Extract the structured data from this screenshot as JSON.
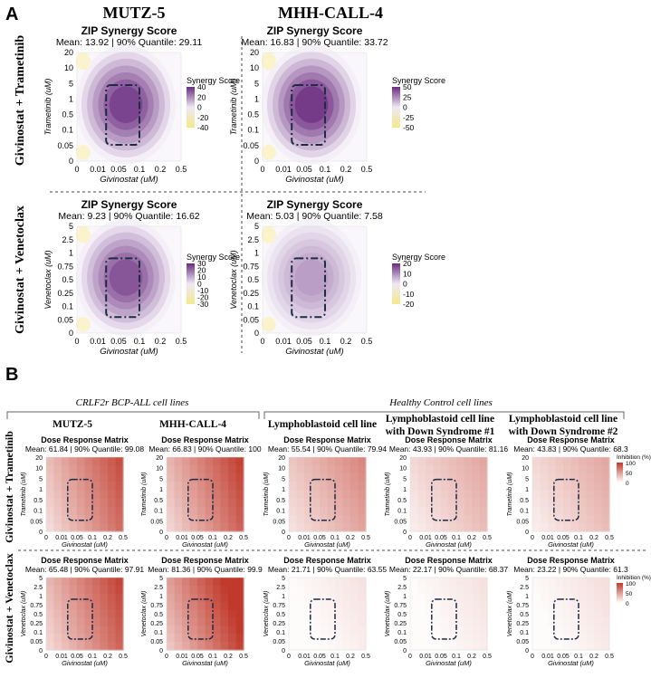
{
  "panel_letters": {
    "a": "A",
    "b": "B"
  },
  "section_a": {
    "column_headers": [
      "MUTZ-5",
      "MHH-CALL-4"
    ],
    "row_labels": [
      "Givinostat + Trametinib",
      "Givinostat + Venetoclax"
    ]
  },
  "section_b": {
    "group_headers": [
      "CRLF2r BCP-ALL cell lines",
      "Healthy Control cell lines"
    ],
    "column_headers": [
      [
        "MUTZ-5"
      ],
      [
        "MHH-CALL-4"
      ],
      [
        "Lymphoblastoid cell line"
      ],
      [
        "Lymphoblastoid cell line",
        "with Down Syndrome #1"
      ],
      [
        "Lymphoblastoid cell line",
        "with Down Syndrome #2"
      ]
    ],
    "row_labels": [
      "Givinostat + Trametinib",
      "Givinostat + Venetoclax"
    ]
  },
  "chart_data": [
    {
      "id": "a11",
      "type": "heatmap",
      "kind": "zip",
      "title": "ZIP Synergy Score",
      "subtitle": "Mean: 13.92 | 90% Quantile: 29.11",
      "xlabel": "Givinostat (uM)",
      "ylabel": "Trametinib (uM)",
      "xticks": [
        "0",
        "0.01",
        "0.05",
        "0.1",
        "0.2",
        "0.5"
      ],
      "yticks": [
        "0",
        "0.05",
        "0.1",
        "0.5",
        "1",
        "5",
        "10",
        "20"
      ],
      "legend_title": "Synergy Score",
      "legend_ticks": [
        "40",
        "20",
        "0",
        "-20",
        "-40"
      ],
      "intensity": 0.95
    },
    {
      "id": "a12",
      "type": "heatmap",
      "kind": "zip",
      "title": "ZIP Synergy Score",
      "subtitle": "Mean: 16.83 | 90% Quantile: 33.72",
      "xlabel": "Givinostat (uM)",
      "ylabel": "Trametinib (uM)",
      "xticks": [
        "0",
        "0.01",
        "0.05",
        "0.1",
        "0.2",
        "0.5"
      ],
      "yticks": [
        "0",
        "0.05",
        "0.1",
        "0.5",
        "1",
        "5",
        "10",
        "20"
      ],
      "legend_title": "Synergy Score",
      "legend_ticks": [
        "50",
        "25",
        "0",
        "-25",
        "-50"
      ],
      "intensity": 1.0
    },
    {
      "id": "a21",
      "type": "heatmap",
      "kind": "zip",
      "title": "ZIP Synergy Score",
      "subtitle": "Mean: 9.23 | 90% Quantile: 16.62",
      "xlabel": "Givinostat (uM)",
      "ylabel": "Venetoclax (uM)",
      "xticks": [
        "0",
        "0.01",
        "0.05",
        "0.1",
        "0.2",
        "0.5"
      ],
      "yticks": [
        "0",
        "0.05",
        "0.1",
        "0.25",
        "0.5",
        "0.75",
        "1",
        "2.5",
        "5"
      ],
      "legend_title": "Synergy Score",
      "legend_ticks": [
        "30",
        "20",
        "10",
        "0",
        "-10",
        "-20",
        "-30"
      ],
      "intensity": 0.85
    },
    {
      "id": "a22",
      "type": "heatmap",
      "kind": "zip",
      "title": "ZIP Synergy Score",
      "subtitle": "Mean: 5.03 | 90% Quantile: 7.58",
      "xlabel": "Givinostat (uM)",
      "ylabel": "Venetoclax (uM)",
      "xticks": [
        "0",
        "0.01",
        "0.05",
        "0.1",
        "0.2",
        "0.5"
      ],
      "yticks": [
        "0",
        "0.05",
        "0.1",
        "0.25",
        "0.5",
        "0.75",
        "1",
        "2.5",
        "5"
      ],
      "legend_title": "Synergy Score",
      "legend_ticks": [
        "20",
        "10",
        "0",
        "-10",
        "-20"
      ],
      "intensity": 0.45
    },
    {
      "id": "b11",
      "type": "heatmap",
      "kind": "dose",
      "title": "Dose Response Matrix",
      "subtitle": "Mean: 61.84 | 90% Quantile: 99.08",
      "xlabel": "Givinostat (uM)",
      "ylabel": "Trametinib (uM)",
      "xticks": [
        "0",
        "0.01",
        "0.05",
        "0.1",
        "0.2",
        "0.5"
      ],
      "yticks": [
        "0",
        "0.05",
        "0.1",
        "0.5",
        "1",
        "5",
        "10",
        "20"
      ],
      "mean": 61.84
    },
    {
      "id": "b12",
      "type": "heatmap",
      "kind": "dose",
      "title": "Dose Response Matrix",
      "subtitle": "Mean: 66.83 | 90% Quantile: 100",
      "xlabel": "Givinostat (uM)",
      "ylabel": "Trametinib (uM)",
      "xticks": [
        "0",
        "0.01",
        "0.05",
        "0.1",
        "0.2",
        "0.5"
      ],
      "yticks": [
        "0",
        "0.05",
        "0.1",
        "0.5",
        "1",
        "5",
        "10",
        "20"
      ],
      "mean": 66.83
    },
    {
      "id": "b13",
      "type": "heatmap",
      "kind": "dose",
      "title": "Dose Response Matrix",
      "subtitle": "Mean: 55.54 | 90% Quantile: 79.94",
      "xlabel": "Givinostat (uM)",
      "ylabel": "Trametinib (uM)",
      "xticks": [
        "0",
        "0.01",
        "0.05",
        "0.1",
        "0.2",
        "0.5"
      ],
      "yticks": [
        "0",
        "0.05",
        "0.1",
        "0.5",
        "1",
        "5",
        "10",
        "20"
      ],
      "mean": 55.54
    },
    {
      "id": "b14",
      "type": "heatmap",
      "kind": "dose",
      "title": "Dose Response Matrix",
      "subtitle": "Mean: 43.93 | 90% Quantile: 81.16",
      "xlabel": "Givinostat (uM)",
      "ylabel": "Trametinib (uM)",
      "xticks": [
        "0",
        "0.01",
        "0.05",
        "0.1",
        "0.2",
        "0.5"
      ],
      "yticks": [
        "0",
        "0.05",
        "0.1",
        "0.5",
        "1",
        "5",
        "10",
        "20"
      ],
      "mean": 43.93
    },
    {
      "id": "b15",
      "type": "heatmap",
      "kind": "dose",
      "title": "Dose Response Matrix",
      "subtitle": "Mean: 43.83 | 90% Quantile: 68.3",
      "xlabel": "Givinostat (uM)",
      "ylabel": "Trametinib (uM)",
      "xticks": [
        "0",
        "0.01",
        "0.05",
        "0.1",
        "0.2",
        "0.5"
      ],
      "yticks": [
        "0",
        "0.05",
        "0.1",
        "0.5",
        "1",
        "5",
        "10",
        "20"
      ],
      "mean": 43.83,
      "legend_title": "Inhibition (%)",
      "legend_ticks": [
        "100",
        "50",
        "0"
      ]
    },
    {
      "id": "b21",
      "type": "heatmap",
      "kind": "dose",
      "title": "Dose Response Matrix",
      "subtitle": "Mean: 65.48 | 90% Quantile: 97.91",
      "xlabel": "Givinostat (uM)",
      "ylabel": "Venetoclax (uM)",
      "xticks": [
        "0",
        "0.01",
        "0.05",
        "0.1",
        "0.2",
        "0.5"
      ],
      "yticks": [
        "0",
        "0.05",
        "0.1",
        "0.25",
        "0.5",
        "0.75",
        "1",
        "2.5",
        "5"
      ],
      "mean": 65.48
    },
    {
      "id": "b22",
      "type": "heatmap",
      "kind": "dose",
      "title": "Dose Response Matrix",
      "subtitle": "Mean: 81.36 | 90% Quantile: 99.9",
      "xlabel": "Givinostat (uM)",
      "ylabel": "Venetoclax (uM)",
      "xticks": [
        "0",
        "0.01",
        "0.05",
        "0.1",
        "0.2",
        "0.5"
      ],
      "yticks": [
        "0",
        "0.05",
        "0.1",
        "0.25",
        "0.5",
        "0.75",
        "1",
        "2.5",
        "5"
      ],
      "mean": 81.36
    },
    {
      "id": "b23",
      "type": "heatmap",
      "kind": "dose",
      "title": "Dose Response Matrix",
      "subtitle": "Mean: 21.71 | 90% Quantile: 63.55",
      "xlabel": "Givinostat (uM)",
      "ylabel": "Venetoclax (uM)",
      "xticks": [
        "0",
        "0.01",
        "0.05",
        "0.1",
        "0.2",
        "0.5"
      ],
      "yticks": [
        "0",
        "0.05",
        "0.1",
        "0.25",
        "0.5",
        "0.75",
        "1",
        "2.5",
        "5"
      ],
      "mean": 21.71
    },
    {
      "id": "b24",
      "type": "heatmap",
      "kind": "dose",
      "title": "Dose Response Matrix",
      "subtitle": "Mean: 22.17 | 90% Quantile: 68.37",
      "xlabel": "Givinostat (uM)",
      "ylabel": "Venetoclax (uM)",
      "xticks": [
        "0",
        "0.01",
        "0.05",
        "0.1",
        "0.2",
        "0.5"
      ],
      "yticks": [
        "0",
        "0.05",
        "0.1",
        "0.25",
        "0.5",
        "0.75",
        "1",
        "2.5",
        "5"
      ],
      "mean": 22.17
    },
    {
      "id": "b25",
      "type": "heatmap",
      "kind": "dose",
      "title": "Dose Response Matrix",
      "subtitle": "Mean: 23.22 | 90% Quantile: 61.3",
      "xlabel": "Givinostat (uM)",
      "ylabel": "Venetoclax (uM)",
      "xticks": [
        "0",
        "0.01",
        "0.05",
        "0.1",
        "0.2",
        "0.5"
      ],
      "yticks": [
        "0",
        "0.05",
        "0.1",
        "0.25",
        "0.5",
        "0.75",
        "1",
        "2.5",
        "5"
      ],
      "mean": 23.22,
      "legend_title": "Inhibition (%)",
      "legend_ticks": [
        "100",
        "50",
        "0"
      ]
    }
  ],
  "colors": {
    "synergy_high": "#6a2c7f",
    "synergy_mid": "#e7dcef",
    "synergy_low": "#f4e98a",
    "inhibition_high": "#c0392b",
    "inhibition_low": "#ffffff",
    "box": "#1f2a44"
  }
}
